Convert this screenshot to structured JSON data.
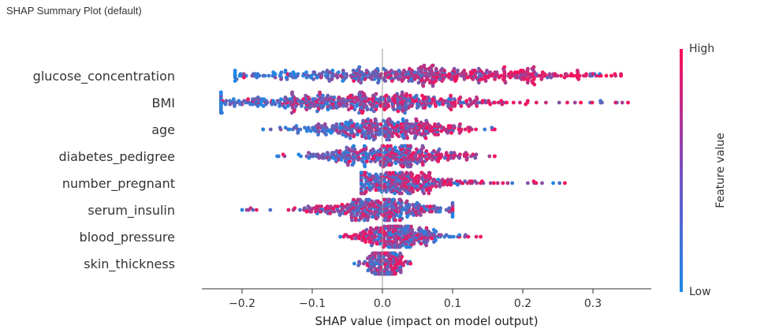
{
  "page_title": "SHAP Summary Plot (default)",
  "chart_data": {
    "type": "scatter",
    "subtype": "beeswarm",
    "xlabel": "SHAP value (impact on model output)",
    "xlim": [
      -0.26,
      0.385
    ],
    "xticks": [
      -0.2,
      -0.1,
      0.0,
      0.1,
      0.2,
      0.3
    ],
    "xtick_labels": [
      "−0.2",
      "−0.1",
      "0.0",
      "0.1",
      "0.2",
      "0.3"
    ],
    "grid": false,
    "zero_line": true,
    "colorbar": {
      "label": "Feature value",
      "high_label": "High",
      "low_label": "Low",
      "low_color": "#1E88E5",
      "high_color": "#FF0D57"
    },
    "features": [
      {
        "name": "glucose_concentration",
        "min": -0.21,
        "max": 0.34,
        "low_center": -0.1,
        "high_center": 0.2
      },
      {
        "name": "BMI",
        "min": -0.23,
        "max": 0.35,
        "low_center": -0.1,
        "high_center": 0.04
      },
      {
        "name": "age",
        "min": -0.17,
        "max": 0.16,
        "low_center": -0.04,
        "high_center": 0.05
      },
      {
        "name": "diabetes_pedigree",
        "min": -0.15,
        "max": 0.16,
        "low_center": -0.03,
        "high_center": 0.05
      },
      {
        "name": "number_pregnant",
        "min": -0.03,
        "max": 0.26,
        "low_center": -0.005,
        "high_center": 0.05
      },
      {
        "name": "serum_insulin",
        "min": -0.2,
        "max": 0.1,
        "low_center": 0.01,
        "high_center": -0.02
      },
      {
        "name": "blood_pressure",
        "min": -0.06,
        "max": 0.14,
        "low_center": 0.05,
        "high_center": 0.0
      },
      {
        "name": "skin_thickness",
        "min": -0.04,
        "max": 0.04,
        "low_center": 0.0,
        "high_center": 0.01
      }
    ]
  }
}
